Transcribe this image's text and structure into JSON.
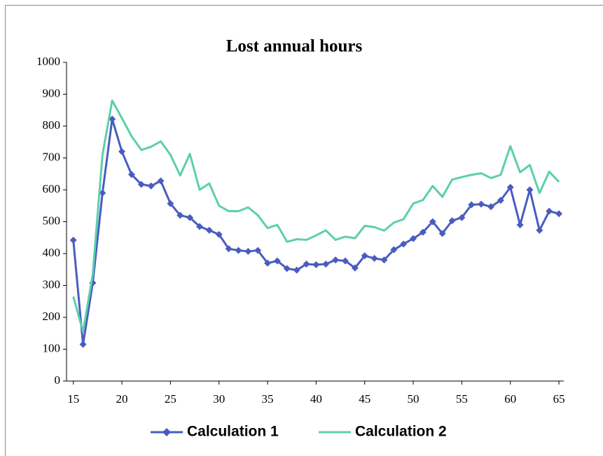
{
  "chart_data": {
    "type": "line",
    "title": "Lost annual hours",
    "x": [
      15,
      16,
      17,
      18,
      19,
      20,
      21,
      22,
      23,
      24,
      25,
      26,
      27,
      28,
      29,
      30,
      31,
      32,
      33,
      34,
      35,
      36,
      37,
      38,
      39,
      40,
      41,
      42,
      43,
      44,
      45,
      46,
      47,
      48,
      49,
      50,
      51,
      52,
      53,
      54,
      55,
      56,
      57,
      58,
      59,
      60,
      61,
      62,
      63,
      64,
      65
    ],
    "series": [
      {
        "name": "Calculation 1",
        "color": "#4a5cc0",
        "marker": "diamond",
        "values": [
          442,
          115,
          308,
          590,
          822,
          720,
          648,
          617,
          612,
          628,
          557,
          520,
          513,
          485,
          473,
          460,
          415,
          410,
          407,
          410,
          370,
          377,
          353,
          348,
          367,
          365,
          367,
          380,
          377,
          355,
          393,
          385,
          380,
          412,
          430,
          447,
          467,
          500,
          463,
          503,
          513,
          553,
          555,
          547,
          567,
          608,
          490,
          600,
          473,
          533,
          525
        ]
      },
      {
        "name": "Calculation 2",
        "color": "#5ccfab",
        "values": [
          265,
          155,
          335,
          710,
          880,
          825,
          768,
          725,
          735,
          752,
          710,
          645,
          713,
          600,
          620,
          550,
          533,
          533,
          545,
          520,
          480,
          490,
          437,
          445,
          443,
          457,
          473,
          443,
          453,
          448,
          487,
          483,
          472,
          497,
          508,
          557,
          568,
          612,
          578,
          632,
          640,
          647,
          652,
          637,
          647,
          737,
          655,
          678,
          590,
          657,
          625
        ]
      }
    ],
    "xlim": [
      14.3,
      65.5
    ],
    "xticks": [
      15,
      20,
      25,
      30,
      35,
      40,
      45,
      50,
      55,
      60,
      65
    ],
    "ylim": [
      0,
      1000
    ],
    "yticks": [
      0,
      100,
      200,
      300,
      400,
      500,
      600,
      700,
      800,
      900,
      1000
    ],
    "grid": false,
    "legend": "bottom"
  }
}
